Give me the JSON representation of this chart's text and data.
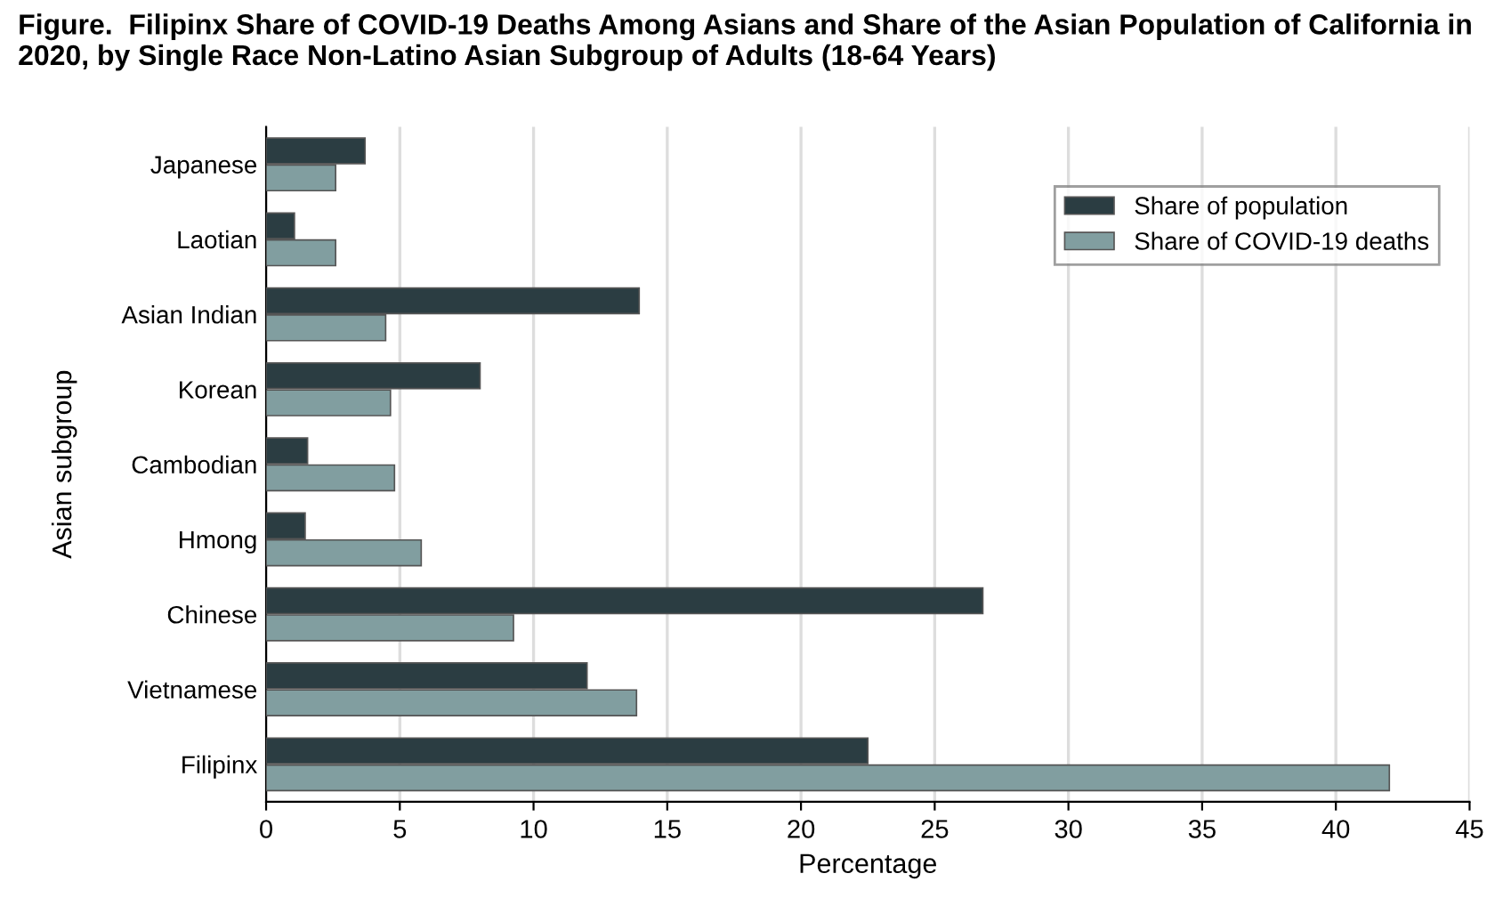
{
  "chart_data": {
    "type": "bar",
    "orientation": "horizontal",
    "title": "Figure.  Filipinx Share of COVID-19 Deaths Among Asians and Share of the Asian Population of California in 2020, by Single Race Non-Latino Asian Subgroup of Adults (18-64 Years)",
    "xlabel": "Percentage",
    "ylabel": "Asian subgroup",
    "categories": [
      "Japanese",
      "Laotian",
      "Asian Indian",
      "Korean",
      "Cambodian",
      "Hmong",
      "Chinese",
      "Vietnamese",
      "Filipinx"
    ],
    "series": [
      {
        "name": "Share of population",
        "color": "#2b3d42",
        "values": [
          3.7,
          1.06,
          13.95,
          8.0,
          1.55,
          1.46,
          26.8,
          12.0,
          22.5
        ]
      },
      {
        "name": "Share of COVID-19 deaths",
        "color": "#819ea0",
        "values": [
          2.6,
          2.6,
          4.47,
          4.65,
          4.8,
          5.8,
          9.25,
          13.85,
          42.0
        ]
      }
    ],
    "xlim": [
      0,
      45
    ],
    "xticks": [
      0,
      5,
      10,
      15,
      20,
      25,
      30,
      35,
      40,
      45
    ],
    "grid": "x",
    "legend": "top right"
  }
}
